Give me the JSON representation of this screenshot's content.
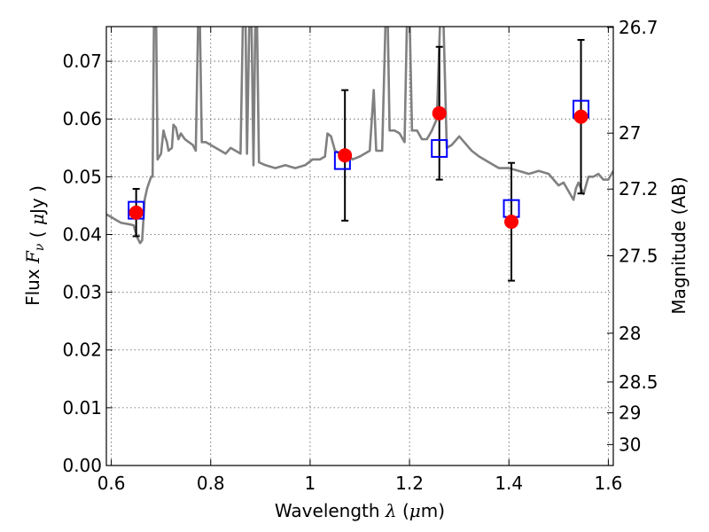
{
  "chart_data": {
    "type": "scatter",
    "xlabel": "Wavelength  λ (μm)",
    "ylabel": "Flux  Fν  ( μJy )",
    "ylabel_right": "Magnitude (AB)",
    "xlim": [
      0.59,
      1.61
    ],
    "ylim": [
      0.0,
      0.076
    ],
    "grid": true,
    "x_ticks": [
      {
        "value": 0.6,
        "label": "0.6"
      },
      {
        "value": 0.8,
        "label": "0.8"
      },
      {
        "value": 1.0,
        "label": "1"
      },
      {
        "value": 1.2,
        "label": "1.2"
      },
      {
        "value": 1.4,
        "label": "1.4"
      },
      {
        "value": 1.6,
        "label": "1.6"
      }
    ],
    "y_ticks": [
      {
        "value": 0.0,
        "label": "0.00"
      },
      {
        "value": 0.01,
        "label": "0.01"
      },
      {
        "value": 0.02,
        "label": "0.02"
      },
      {
        "value": 0.03,
        "label": "0.03"
      },
      {
        "value": 0.04,
        "label": "0.04"
      },
      {
        "value": 0.05,
        "label": "0.05"
      },
      {
        "value": 0.06,
        "label": "0.06"
      },
      {
        "value": 0.07,
        "label": "0.07"
      }
    ],
    "mag_ticks": [
      {
        "value": 26.7,
        "label": "26.7"
      },
      {
        "value": 27.0,
        "label": "27"
      },
      {
        "value": 27.2,
        "label": "27.2"
      },
      {
        "value": 27.5,
        "label": "27.5"
      },
      {
        "value": 28.0,
        "label": "28"
      },
      {
        "value": 28.5,
        "label": "28.5"
      },
      {
        "value": 29.0,
        "label": "29"
      },
      {
        "value": 30.0,
        "label": "30"
      }
    ],
    "observed": {
      "x": [
        0.65,
        1.07,
        1.26,
        1.405,
        1.545
      ],
      "y": [
        0.0438,
        0.0537,
        0.061,
        0.0422,
        0.0604
      ],
      "yerr": [
        0.0041,
        0.0113,
        0.0115,
        0.0102,
        0.0133
      ],
      "color": "#ff0000"
    },
    "model_photometry": {
      "x": [
        0.65,
        1.065,
        1.26,
        1.405,
        1.545
      ],
      "y": [
        0.0442,
        0.0528,
        0.0549,
        0.0445,
        0.0617
      ],
      "color": "#0000ff"
    },
    "spectrum": {
      "color": "#808080",
      "points": [
        [
          0.59,
          0.0435
        ],
        [
          0.6,
          0.043
        ],
        [
          0.61,
          0.0425
        ],
        [
          0.62,
          0.042
        ],
        [
          0.635,
          0.0418
        ],
        [
          0.645,
          0.0416
        ],
        [
          0.652,
          0.0395
        ],
        [
          0.658,
          0.0385
        ],
        [
          0.662,
          0.039
        ],
        [
          0.667,
          0.046
        ],
        [
          0.672,
          0.048
        ],
        [
          0.68,
          0.05
        ],
        [
          0.683,
          0.05
        ],
        [
          0.686,
          0.078
        ],
        [
          0.69,
          0.078
        ],
        [
          0.693,
          0.053
        ],
        [
          0.7,
          0.054
        ],
        [
          0.705,
          0.058
        ],
        [
          0.708,
          0.057
        ],
        [
          0.712,
          0.056
        ],
        [
          0.715,
          0.0545
        ],
        [
          0.722,
          0.055
        ],
        [
          0.725,
          0.059
        ],
        [
          0.73,
          0.0585
        ],
        [
          0.735,
          0.0565
        ],
        [
          0.74,
          0.0575
        ],
        [
          0.748,
          0.0565
        ],
        [
          0.756,
          0.056
        ],
        [
          0.764,
          0.0555
        ],
        [
          0.77,
          0.0545
        ],
        [
          0.775,
          0.078
        ],
        [
          0.778,
          0.078
        ],
        [
          0.782,
          0.056
        ],
        [
          0.79,
          0.056
        ],
        [
          0.8,
          0.0555
        ],
        [
          0.81,
          0.055
        ],
        [
          0.82,
          0.0545
        ],
        [
          0.83,
          0.054
        ],
        [
          0.84,
          0.055
        ],
        [
          0.85,
          0.0545
        ],
        [
          0.86,
          0.054
        ],
        [
          0.865,
          0.078
        ],
        [
          0.87,
          0.078
        ],
        [
          0.873,
          0.054
        ],
        [
          0.878,
          0.078
        ],
        [
          0.882,
          0.078
        ],
        [
          0.886,
          0.052
        ],
        [
          0.89,
          0.078
        ],
        [
          0.893,
          0.078
        ],
        [
          0.897,
          0.0525
        ],
        [
          0.91,
          0.052
        ],
        [
          0.93,
          0.0515
        ],
        [
          0.95,
          0.052
        ],
        [
          0.97,
          0.0515
        ],
        [
          0.99,
          0.052
        ],
        [
          1.005,
          0.053
        ],
        [
          1.02,
          0.053
        ],
        [
          1.03,
          0.0535
        ],
        [
          1.035,
          0.0575
        ],
        [
          1.042,
          0.057
        ],
        [
          1.05,
          0.0545
        ],
        [
          1.06,
          0.054
        ],
        [
          1.075,
          0.054
        ],
        [
          1.085,
          0.053
        ],
        [
          1.1,
          0.0535
        ],
        [
          1.11,
          0.054
        ],
        [
          1.12,
          0.0545
        ],
        [
          1.128,
          0.065
        ],
        [
          1.133,
          0.0545
        ],
        [
          1.145,
          0.0545
        ],
        [
          1.152,
          0.078
        ],
        [
          1.156,
          0.078
        ],
        [
          1.16,
          0.058
        ],
        [
          1.17,
          0.058
        ],
        [
          1.18,
          0.0575
        ],
        [
          1.19,
          0.056
        ],
        [
          1.195,
          0.078
        ],
        [
          1.2,
          0.078
        ],
        [
          1.205,
          0.058
        ],
        [
          1.215,
          0.058
        ],
        [
          1.225,
          0.0565
        ],
        [
          1.235,
          0.0565
        ],
        [
          1.245,
          0.058
        ],
        [
          1.255,
          0.06
        ],
        [
          1.262,
          0.078
        ],
        [
          1.268,
          0.078
        ],
        [
          1.275,
          0.055
        ],
        [
          1.285,
          0.0555
        ],
        [
          1.3,
          0.057
        ],
        [
          1.31,
          0.056
        ],
        [
          1.325,
          0.0545
        ],
        [
          1.34,
          0.0535
        ],
        [
          1.36,
          0.0525
        ],
        [
          1.38,
          0.0515
        ],
        [
          1.4,
          0.0515
        ],
        [
          1.42,
          0.051
        ],
        [
          1.44,
          0.0505
        ],
        [
          1.46,
          0.051
        ],
        [
          1.48,
          0.0505
        ],
        [
          1.49,
          0.0495
        ],
        [
          1.5,
          0.0485
        ],
        [
          1.51,
          0.049
        ],
        [
          1.52,
          0.0475
        ],
        [
          1.53,
          0.046
        ],
        [
          1.535,
          0.048
        ],
        [
          1.54,
          0.049
        ],
        [
          1.55,
          0.047
        ],
        [
          1.56,
          0.05
        ],
        [
          1.57,
          0.05
        ],
        [
          1.58,
          0.0505
        ],
        [
          1.59,
          0.0495
        ],
        [
          1.6,
          0.0495
        ],
        [
          1.61,
          0.051
        ]
      ]
    }
  }
}
